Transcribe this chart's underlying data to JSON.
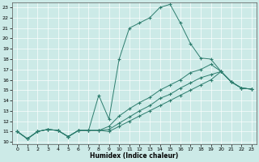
{
  "xlabel": "Humidex (Indice chaleur)",
  "bg_color": "#cceae7",
  "line_color": "#2e7d6e",
  "grid_color": "#ffffff",
  "xlim": [
    -0.5,
    23.5
  ],
  "ylim": [
    9.8,
    23.5
  ],
  "xticks": [
    0,
    1,
    2,
    3,
    4,
    5,
    6,
    7,
    8,
    9,
    10,
    11,
    12,
    13,
    14,
    15,
    16,
    17,
    18,
    19,
    20,
    21,
    22,
    23
  ],
  "yticks": [
    10,
    11,
    12,
    13,
    14,
    15,
    16,
    17,
    18,
    19,
    20,
    21,
    22,
    23
  ],
  "lines": [
    {
      "x": [
        0,
        1,
        2,
        3,
        4,
        5,
        6,
        7,
        8,
        9,
        10,
        11,
        12,
        13,
        14,
        15,
        16,
        17,
        18,
        19,
        20,
        21,
        22,
        23
      ],
      "y": [
        11,
        10.3,
        11,
        11.2,
        11.1,
        10.5,
        11.1,
        11.1,
        14.5,
        12.2,
        18.0,
        21.0,
        21.5,
        22.0,
        23.0,
        23.3,
        21.5,
        19.5,
        18.1,
        18.0,
        16.8,
        15.8,
        15.2,
        15.1
      ]
    },
    {
      "x": [
        0,
        1,
        2,
        3,
        4,
        5,
        6,
        7,
        8,
        9,
        10,
        11,
        12,
        13,
        14,
        15,
        16,
        17,
        18,
        19,
        20,
        21,
        22,
        23
      ],
      "y": [
        11,
        10.3,
        11,
        11.2,
        11.1,
        10.5,
        11.1,
        11.1,
        11.1,
        11.5,
        12.5,
        13.2,
        13.8,
        14.3,
        15.0,
        15.5,
        16.0,
        16.7,
        17.0,
        17.5,
        16.8,
        15.8,
        15.2,
        15.1
      ]
    },
    {
      "x": [
        0,
        1,
        2,
        3,
        4,
        5,
        6,
        7,
        8,
        9,
        10,
        11,
        12,
        13,
        14,
        15,
        16,
        17,
        18,
        19,
        20,
        21,
        22,
        23
      ],
      "y": [
        11,
        10.3,
        11,
        11.2,
        11.1,
        10.5,
        11.1,
        11.1,
        11.1,
        11.2,
        11.8,
        12.4,
        13.0,
        13.5,
        14.2,
        14.6,
        15.2,
        15.7,
        16.2,
        16.5,
        16.8,
        15.8,
        15.2,
        15.1
      ]
    },
    {
      "x": [
        0,
        1,
        2,
        3,
        4,
        5,
        6,
        7,
        8,
        9,
        10,
        11,
        12,
        13,
        14,
        15,
        16,
        17,
        18,
        19,
        20,
        21,
        22,
        23
      ],
      "y": [
        11,
        10.3,
        11,
        11.2,
        11.1,
        10.5,
        11.1,
        11.1,
        11.1,
        11.0,
        11.5,
        12.0,
        12.5,
        13.0,
        13.5,
        14.0,
        14.5,
        15.0,
        15.5,
        16.0,
        16.8,
        15.8,
        15.2,
        15.1
      ]
    }
  ]
}
